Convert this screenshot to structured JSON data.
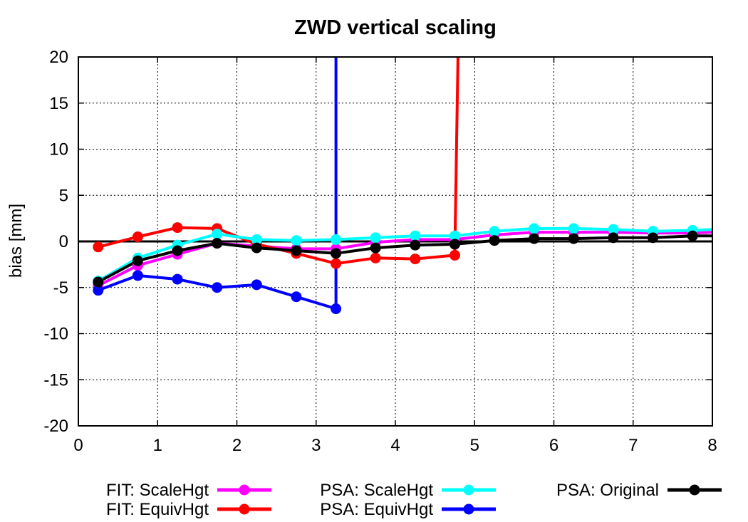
{
  "chart_data": {
    "type": "line",
    "title": "ZWD vertical scaling",
    "xlabel": "",
    "ylabel": "bias [mm]",
    "xlim": [
      0,
      8
    ],
    "ylim": [
      -20,
      20
    ],
    "xticks": [
      0,
      1,
      2,
      3,
      4,
      5,
      6,
      7,
      8
    ],
    "xtick_labels": [
      "0",
      "1",
      "2",
      "3",
      "4",
      "5",
      "6",
      "7",
      "8"
    ],
    "yticks": [
      20,
      15,
      10,
      5,
      0,
      -5,
      -10,
      -15,
      -20
    ],
    "ytick_labels": [
      "20",
      "15",
      "10",
      "5",
      "0",
      "-5",
      "-10",
      "-15",
      "-20"
    ],
    "grid": true,
    "legend_position": "bottom",
    "zero_line": true,
    "series": [
      {
        "name": "FIT: ScaleHgt",
        "color": "#ff00ff",
        "x": [
          0.25,
          0.75,
          1.25,
          1.75,
          2.25,
          2.75,
          3.25,
          3.75,
          4.25,
          4.75,
          5.25,
          5.75,
          6.25,
          6.75,
          7.25,
          7.75,
          8.0
        ],
        "y": [
          -4.8,
          -2.6,
          -1.4,
          -0.2,
          -0.5,
          -0.8,
          -0.8,
          -0.1,
          0.2,
          0.2,
          0.7,
          1.0,
          1.0,
          1.0,
          0.9,
          0.9,
          1.0
        ]
      },
      {
        "name": "FIT: EquivHgt",
        "color": "#ff0000",
        "x": [
          0.25,
          0.75,
          1.25,
          1.75,
          2.25,
          2.75,
          3.25,
          3.75,
          4.25,
          4.75,
          4.79
        ],
        "y": [
          -0.6,
          0.5,
          1.5,
          1.4,
          -0.3,
          -1.3,
          -2.4,
          -1.8,
          -1.9,
          -1.5,
          20
        ]
      },
      {
        "name": "PSA: ScaleHgt",
        "color": "#00ffff",
        "x": [
          0.25,
          0.75,
          1.25,
          1.75,
          2.25,
          2.75,
          3.25,
          3.75,
          4.25,
          4.75,
          5.25,
          5.75,
          6.25,
          6.75,
          7.25,
          7.75,
          8.0
        ],
        "y": [
          -4.3,
          -1.8,
          -0.4,
          0.8,
          0.2,
          0.1,
          0.2,
          0.4,
          0.6,
          0.6,
          1.1,
          1.4,
          1.4,
          1.3,
          1.1,
          1.2,
          1.3
        ]
      },
      {
        "name": "PSA: EquivHgt",
        "color": "#0000ff",
        "x": [
          0.25,
          0.75,
          1.25,
          1.75,
          2.25,
          2.75,
          3.25,
          3.25
        ],
        "y": [
          -5.3,
          -3.7,
          -4.1,
          -5.0,
          -4.7,
          -6.0,
          -7.3,
          20
        ]
      },
      {
        "name": "PSA: Original",
        "color": "#000000",
        "x": [
          0.25,
          0.75,
          1.25,
          1.75,
          2.25,
          2.75,
          3.25,
          3.75,
          4.25,
          4.75,
          5.25,
          5.75,
          6.25,
          6.75,
          7.25,
          7.75,
          8.0
        ],
        "y": [
          -4.4,
          -2.1,
          -1.0,
          -0.2,
          -0.7,
          -1.0,
          -1.3,
          -0.7,
          -0.4,
          -0.3,
          0.1,
          0.3,
          0.3,
          0.4,
          0.4,
          0.6,
          0.6
        ]
      }
    ]
  }
}
